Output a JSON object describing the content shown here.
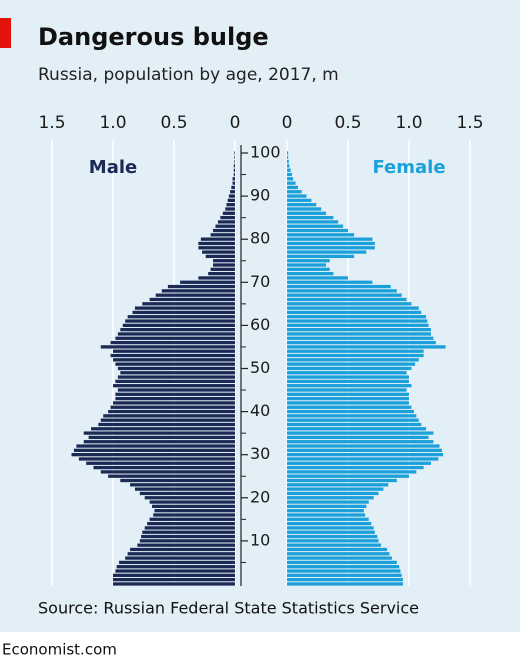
{
  "chart_data": {
    "type": "pyramid",
    "title": "Dangerous bulge",
    "subtitle": "Russia, population by age, 2017, m",
    "source": "Source: Russian Federal State Statistics Service",
    "x": [
      0,
      1,
      2,
      3,
      4,
      5,
      6,
      7,
      8,
      9,
      10,
      11,
      12,
      13,
      14,
      15,
      16,
      17,
      18,
      19,
      20,
      21,
      22,
      23,
      24,
      25,
      26,
      27,
      28,
      29,
      30,
      31,
      32,
      33,
      34,
      35,
      36,
      37,
      38,
      39,
      40,
      41,
      42,
      43,
      44,
      45,
      46,
      47,
      48,
      49,
      50,
      51,
      52,
      53,
      54,
      55,
      56,
      57,
      58,
      59,
      60,
      61,
      62,
      63,
      64,
      65,
      66,
      67,
      68,
      69,
      70,
      71,
      72,
      73,
      74,
      75,
      76,
      77,
      78,
      79,
      80,
      81,
      82,
      83,
      84,
      85,
      86,
      87,
      88,
      89,
      90,
      91,
      92,
      93,
      94,
      95,
      96,
      97,
      98,
      99,
      100
    ],
    "xlim": [
      0,
      100
    ],
    "xticks": [
      10,
      20,
      30,
      40,
      50,
      60,
      70,
      80,
      90,
      100
    ],
    "xminor_ticks": [
      5,
      15,
      25,
      35,
      45,
      55,
      65,
      75,
      85,
      95
    ],
    "ylim": [
      0,
      1.5
    ],
    "yticks": [
      0,
      {
        "value": 0.5,
        "label": "0.5"
      },
      {
        "value": 1,
        "label": "1.0"
      },
      1.5
    ],
    "grid": true,
    "series": [
      {
        "name": "Male",
        "color": "#1b2a55",
        "side": "left",
        "values": [
          1.0,
          1.0,
          1.0,
          0.98,
          0.97,
          0.95,
          0.9,
          0.88,
          0.86,
          0.8,
          0.78,
          0.77,
          0.76,
          0.74,
          0.72,
          0.7,
          0.67,
          0.66,
          0.68,
          0.7,
          0.74,
          0.78,
          0.82,
          0.86,
          0.94,
          1.04,
          1.1,
          1.16,
          1.22,
          1.28,
          1.34,
          1.32,
          1.3,
          1.24,
          1.2,
          1.24,
          1.18,
          1.12,
          1.1,
          1.08,
          1.04,
          1.02,
          1.0,
          0.98,
          0.98,
          0.96,
          1.0,
          0.98,
          0.96,
          0.94,
          0.96,
          0.98,
          1.0,
          1.02,
          1.0,
          1.1,
          1.02,
          0.98,
          0.96,
          0.94,
          0.92,
          0.9,
          0.88,
          0.84,
          0.82,
          0.76,
          0.7,
          0.65,
          0.6,
          0.55,
          0.45,
          0.3,
          0.22,
          0.2,
          0.18,
          0.18,
          0.24,
          0.27,
          0.3,
          0.3,
          0.28,
          0.2,
          0.18,
          0.16,
          0.14,
          0.12,
          0.1,
          0.08,
          0.07,
          0.06,
          0.05,
          0.04,
          0.03,
          0.02,
          0.02,
          0.01,
          0.01,
          0.01,
          0.005,
          0.005,
          0.005
        ]
      },
      {
        "name": "Female",
        "color": "#1ba0d9",
        "side": "right",
        "values": [
          0.95,
          0.95,
          0.94,
          0.93,
          0.92,
          0.9,
          0.86,
          0.84,
          0.82,
          0.77,
          0.75,
          0.74,
          0.72,
          0.71,
          0.69,
          0.67,
          0.64,
          0.63,
          0.65,
          0.67,
          0.71,
          0.75,
          0.79,
          0.83,
          0.9,
          1.0,
          1.06,
          1.12,
          1.18,
          1.24,
          1.28,
          1.27,
          1.25,
          1.2,
          1.16,
          1.2,
          1.14,
          1.1,
          1.08,
          1.06,
          1.04,
          1.02,
          1.0,
          1.0,
          1.0,
          0.98,
          1.02,
          1.0,
          1.0,
          0.98,
          1.02,
          1.05,
          1.08,
          1.12,
          1.12,
          1.3,
          1.22,
          1.2,
          1.18,
          1.18,
          1.16,
          1.15,
          1.14,
          1.1,
          1.08,
          1.02,
          0.98,
          0.94,
          0.9,
          0.85,
          0.7,
          0.5,
          0.38,
          0.35,
          0.32,
          0.35,
          0.55,
          0.65,
          0.72,
          0.72,
          0.7,
          0.55,
          0.5,
          0.46,
          0.42,
          0.38,
          0.32,
          0.28,
          0.24,
          0.2,
          0.16,
          0.12,
          0.09,
          0.07,
          0.05,
          0.04,
          0.03,
          0.02,
          0.015,
          0.01,
          0.01
        ]
      }
    ]
  },
  "brand": "Economist.com"
}
